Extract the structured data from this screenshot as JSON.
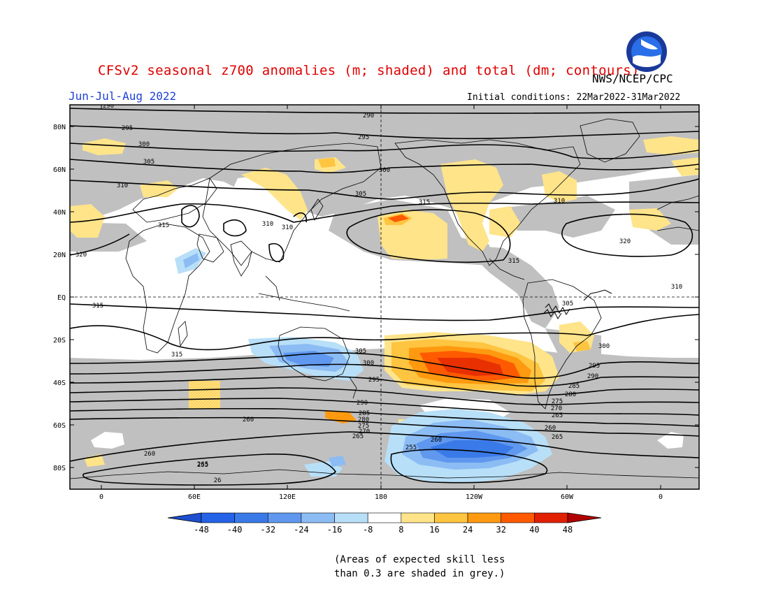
{
  "header": {
    "title": "CFSv2 seasonal z700 anomalies (m; shaded) and total (dm; contours)",
    "agency": "NWS/NCEP/CPC",
    "logo_text": "NOAA",
    "season": "Jun-Jul-Aug 2022",
    "initial_conditions": "Initial conditions: 22Mar2022-31Mar2022"
  },
  "axes": {
    "lat_labels": [
      "80N",
      "60N",
      "40N",
      "20N",
      "EQ",
      "20S",
      "40S",
      "60S",
      "80S"
    ],
    "lon_labels": [
      "0",
      "60E",
      "120E",
      "180",
      "120W",
      "60W",
      "0"
    ]
  },
  "colorbar": {
    "ticks": [
      "-48",
      "-40",
      "-32",
      "-24",
      "-16",
      "-8",
      "8",
      "16",
      "24",
      "32",
      "40",
      "48"
    ],
    "colors": [
      "#2563e6",
      "#3a7ae8",
      "#5f98ee",
      "#8cbcf4",
      "#b8dff8",
      "#ffffff",
      "#ffe48a",
      "#ffc440",
      "#ff9a10",
      "#ff5a00",
      "#e02000"
    ],
    "end_low": "#1e4fd0",
    "end_high": "#b00000"
  },
  "contour_labels": [
    {
      "text": "290"
    },
    {
      "text": "295"
    },
    {
      "text": "300"
    },
    {
      "text": "305"
    },
    {
      "text": "310"
    },
    {
      "text": "315"
    },
    {
      "text": "320"
    },
    {
      "text": "315"
    },
    {
      "text": "315"
    },
    {
      "text": "310"
    },
    {
      "text": "310"
    },
    {
      "text": "305"
    },
    {
      "text": "300"
    },
    {
      "text": "295"
    },
    {
      "text": "290"
    },
    {
      "text": "285"
    },
    {
      "text": "280"
    },
    {
      "text": "275"
    },
    {
      "text": "270"
    },
    {
      "text": "265"
    },
    {
      "text": "260"
    },
    {
      "text": "255"
    },
    {
      "text": "260"
    },
    {
      "text": "265"
    },
    {
      "text": "290"
    },
    {
      "text": "295"
    },
    {
      "text": "300"
    },
    {
      "text": "305"
    },
    {
      "text": "310"
    },
    {
      "text": "315"
    },
    {
      "text": "320"
    },
    {
      "text": "315"
    },
    {
      "text": "310"
    },
    {
      "text": "305"
    },
    {
      "text": "300"
    },
    {
      "text": "295"
    },
    {
      "text": "290"
    },
    {
      "text": "285"
    },
    {
      "text": "280"
    },
    {
      "text": "275"
    },
    {
      "text": "270"
    },
    {
      "text": "265"
    },
    {
      "text": "260"
    },
    {
      "text": "265"
    },
    {
      "text": "260"
    },
    {
      "text": "255"
    },
    {
      "text": "26"
    }
  ],
  "note": {
    "line1": "(Areas of expected skill less",
    "line2": "than 0.3 are shaded in grey.)"
  }
}
